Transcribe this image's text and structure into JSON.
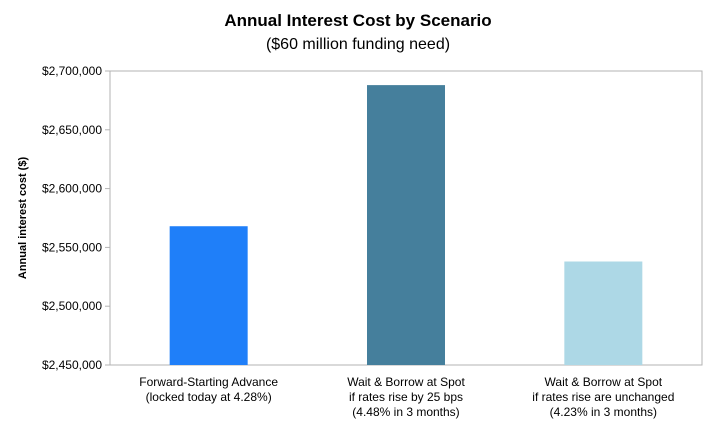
{
  "chart_data": {
    "type": "bar",
    "title": "Annual Interest Cost by Scenario",
    "subtitle": "($60 million funding need)",
    "xlabel": "",
    "ylabel": "Annual interest cost ($)",
    "ylim": [
      2450000,
      2700000
    ],
    "yticks": [
      2450000,
      2500000,
      2550000,
      2600000,
      2650000,
      2700000
    ],
    "ytick_labels": [
      "$2,450,000",
      "$2,500,000",
      "$2,550,000",
      "$2,600,000",
      "$2,650,000",
      "$2,700,000"
    ],
    "grid": false,
    "categories": [
      [
        "Forward-Starting Advance",
        "(locked today at 4.28%)"
      ],
      [
        "Wait & Borrow at Spot",
        "if rates rise by 25 bps",
        "(4.48% in 3 months)"
      ],
      [
        "Wait & Borrow at Spot",
        "if rates rise are unchanged",
        "(4.23% in 3 months)"
      ]
    ],
    "values": [
      2568000,
      2688000,
      2538000
    ],
    "colors": [
      "#1f7ff9",
      "#457f9c",
      "#add8e6"
    ]
  }
}
